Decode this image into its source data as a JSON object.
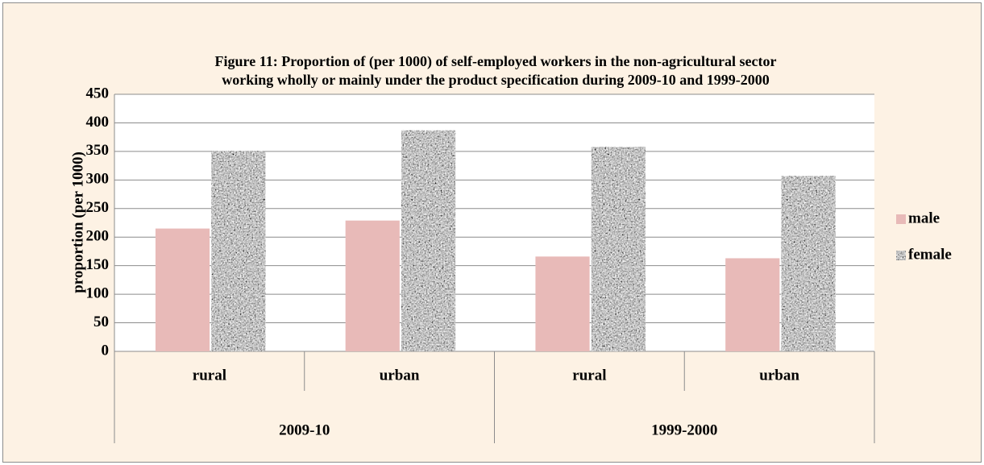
{
  "chart_data": {
    "type": "bar",
    "title": [
      "Figure 11: Proportion of (per 1000) of self-employed workers in the non-agricultural sector",
      "working wholly or mainly under the product specification during 2009-10 and 1999-2000"
    ],
    "ylabel": "proportion (per 1000)",
    "categories": [
      "rural",
      "urban",
      "rural",
      "urban"
    ],
    "groups": [
      "2009-10",
      "1999-2000"
    ],
    "series": [
      {
        "name": "male",
        "color": "#e8bab8",
        "values": [
          215,
          229,
          166,
          163
        ]
      },
      {
        "name": "female",
        "color": "#8a8a8a",
        "texture": "granite",
        "values": [
          351,
          387,
          358,
          307
        ]
      }
    ],
    "ylim": [
      0,
      450
    ],
    "yticks": [
      0,
      50,
      100,
      150,
      200,
      250,
      300,
      350,
      400,
      450
    ],
    "grid": true,
    "legend": "right"
  }
}
